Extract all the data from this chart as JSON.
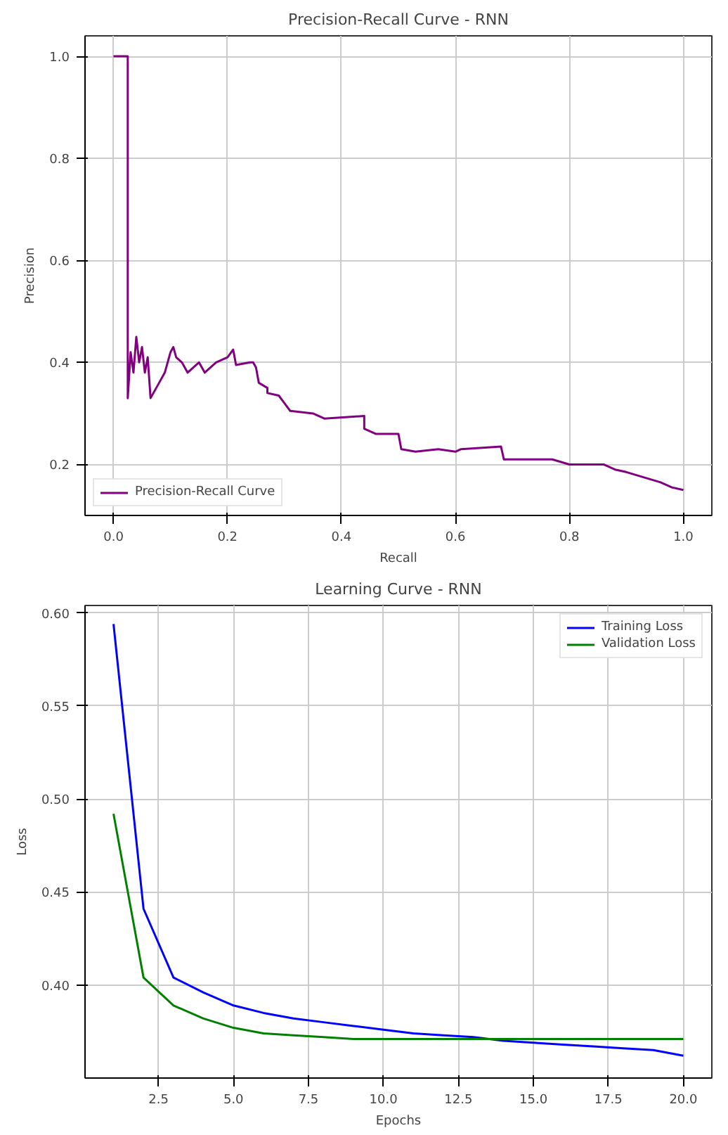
{
  "chart_data": [
    {
      "type": "line",
      "title": "Precision-Recall Curve - RNN",
      "xlabel": "Recall",
      "ylabel": "Precision",
      "xlim": [
        -0.05,
        1.05
      ],
      "ylim": [
        0.1,
        1.04
      ],
      "xticks": [
        {
          "value": 0,
          "label": "0.0"
        },
        0.2,
        0.4,
        0.6,
        0.8,
        {
          "value": 1,
          "label": "1.0"
        }
      ],
      "yticks": [
        0.2,
        0.4,
        0.6,
        0.8,
        {
          "value": 1,
          "label": "1.0"
        }
      ],
      "grid": true,
      "legend": "bottom left",
      "series": [
        {
          "name": "Precision-Recall Curve",
          "color": "#800080",
          "x": [
            0.0,
            0.025,
            0.025,
            0.03,
            0.035,
            0.04,
            0.045,
            0.05,
            0.055,
            0.06,
            0.065,
            0.07,
            0.08,
            0.09,
            0.1,
            0.105,
            0.11,
            0.12,
            0.13,
            0.14,
            0.15,
            0.16,
            0.17,
            0.18,
            0.2,
            0.21,
            0.215,
            0.24,
            0.245,
            0.25,
            0.255,
            0.27,
            0.27,
            0.29,
            0.3,
            0.31,
            0.35,
            0.37,
            0.44,
            0.44,
            0.46,
            0.5,
            0.505,
            0.53,
            0.57,
            0.6,
            0.61,
            0.68,
            0.685,
            0.72,
            0.77,
            0.8,
            0.86,
            0.88,
            0.9,
            0.93,
            0.96,
            0.98,
            1.0
          ],
          "values": [
            1.0,
            1.0,
            0.33,
            0.42,
            0.38,
            0.45,
            0.4,
            0.43,
            0.38,
            0.41,
            0.33,
            0.34,
            0.36,
            0.38,
            0.42,
            0.43,
            0.41,
            0.4,
            0.38,
            0.39,
            0.4,
            0.38,
            0.39,
            0.4,
            0.41,
            0.425,
            0.395,
            0.4,
            0.4,
            0.39,
            0.36,
            0.35,
            0.34,
            0.335,
            0.32,
            0.305,
            0.3,
            0.29,
            0.295,
            0.27,
            0.26,
            0.26,
            0.23,
            0.225,
            0.23,
            0.225,
            0.23,
            0.235,
            0.21,
            0.21,
            0.21,
            0.2,
            0.2,
            0.19,
            0.185,
            0.175,
            0.165,
            0.155,
            0.15
          ]
        }
      ]
    },
    {
      "type": "line",
      "title": "Learning Curve - RNN",
      "xlabel": "Epochs",
      "ylabel": "Loss",
      "xlim": [
        0.05,
        20.95
      ],
      "ylim": [
        0.35,
        0.604
      ],
      "xticks": [
        2.5,
        {
          "value": 5,
          "label": "5.0"
        },
        7.5,
        {
          "value": 10,
          "label": "10.0"
        },
        12.5,
        {
          "value": 15,
          "label": "15.0"
        },
        17.5,
        {
          "value": 20,
          "label": "20.0"
        }
      ],
      "yticks": [
        {
          "value": 0.4,
          "label": "0.40"
        },
        0.45,
        {
          "value": 0.5,
          "label": "0.50"
        },
        0.55,
        {
          "value": 0.6,
          "label": "0.60"
        }
      ],
      "grid": true,
      "legend": "top right",
      "x": [
        1,
        2,
        3,
        4,
        5,
        6,
        7,
        8,
        9,
        10,
        11,
        12,
        13,
        14,
        15,
        16,
        17,
        18,
        19,
        20
      ],
      "series": [
        {
          "name": "Training Loss",
          "color": "#0000ff",
          "values": [
            0.594,
            0.441,
            0.404,
            0.396,
            0.389,
            0.385,
            0.382,
            0.38,
            0.378,
            0.376,
            0.374,
            0.373,
            0.372,
            0.37,
            0.369,
            0.368,
            0.367,
            0.366,
            0.365,
            0.362
          ]
        },
        {
          "name": "Validation Loss",
          "color": "#008000",
          "values": [
            0.492,
            0.404,
            0.389,
            0.382,
            0.377,
            0.374,
            0.373,
            0.372,
            0.371,
            0.371,
            0.371,
            0.371,
            0.371,
            0.371,
            0.371,
            0.371,
            0.371,
            0.371,
            0.371,
            0.371
          ]
        }
      ]
    }
  ]
}
